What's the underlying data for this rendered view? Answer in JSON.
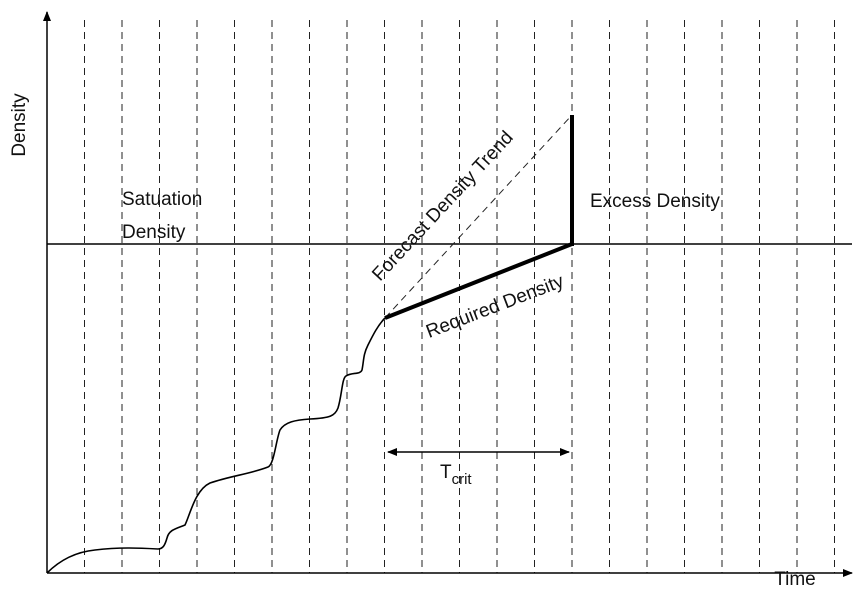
{
  "axes": {
    "y_label": "Density",
    "x_label": "Time"
  },
  "labels": {
    "saturation": [
      "Satuation",
      "Density"
    ],
    "excess": "Excess Density",
    "forecast": "Forecast Density Trend",
    "required": "Required Density",
    "t_crit": {
      "main": "T",
      "subscript": "crit"
    }
  }
}
